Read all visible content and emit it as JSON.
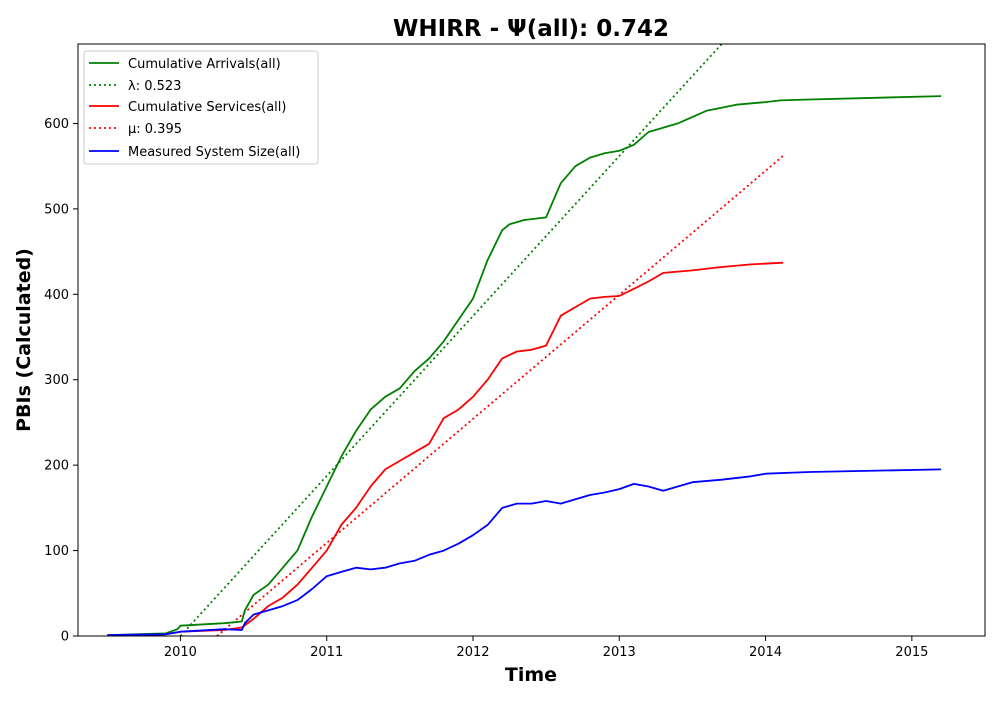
{
  "chart_data": {
    "type": "line",
    "title": "WHIRR -  Ψ(all): 0.742",
    "xlabel": "Time",
    "ylabel": "PBIs (Calculated)",
    "xlim": [
      2009.3,
      2015.5
    ],
    "ylim": [
      0,
      693
    ],
    "x_ticks": [
      "2010",
      "2011",
      "2012",
      "2013",
      "2014",
      "2015"
    ],
    "y_ticks": [
      "0",
      "100",
      "200",
      "300",
      "400",
      "500",
      "600"
    ],
    "grid": false,
    "legend_position": "top-left",
    "series": [
      {
        "name": "Cumulative Arrivals(all)",
        "color": "#008000",
        "style": "solid",
        "x": [
          2009.5,
          2009.9,
          2009.98,
          2010.0,
          2010.3,
          2010.42,
          2010.44,
          2010.5,
          2010.6,
          2010.7,
          2010.8,
          2010.9,
          2011.0,
          2011.1,
          2011.2,
          2011.3,
          2011.4,
          2011.5,
          2011.6,
          2011.7,
          2011.8,
          2011.9,
          2012.0,
          2012.1,
          2012.2,
          2012.25,
          2012.35,
          2012.5,
          2012.55,
          2012.6,
          2012.7,
          2012.8,
          2012.9,
          2013.0,
          2013.1,
          2013.2,
          2013.4,
          2013.6,
          2013.8,
          2014.0,
          2014.1,
          2014.3,
          2015.2
        ],
        "y": [
          1,
          3,
          8,
          12,
          15,
          17,
          30,
          48,
          60,
          80,
          100,
          140,
          175,
          210,
          240,
          265,
          280,
          290,
          310,
          325,
          345,
          370,
          395,
          440,
          475,
          482,
          487,
          490,
          510,
          530,
          550,
          560,
          565,
          568,
          575,
          590,
          600,
          615,
          622,
          625,
          627,
          628,
          632
        ]
      },
      {
        "name": "λ: 0.523",
        "color": "#008000",
        "style": "dotted",
        "x": [
          2010.0,
          2013.7
        ],
        "y": [
          0,
          693
        ]
      },
      {
        "name": "Cumulative Services(all)",
        "color": "#ff0000",
        "style": "solid",
        "x": [
          2009.5,
          2009.9,
          2010.0,
          2010.3,
          2010.42,
          2010.5,
          2010.6,
          2010.7,
          2010.8,
          2010.9,
          2011.0,
          2011.1,
          2011.2,
          2011.3,
          2011.4,
          2011.5,
          2011.6,
          2011.7,
          2011.8,
          2011.9,
          2012.0,
          2012.1,
          2012.2,
          2012.3,
          2012.4,
          2012.5,
          2012.6,
          2012.7,
          2012.8,
          2012.9,
          2013.0,
          2013.2,
          2013.3,
          2013.5,
          2013.7,
          2013.9,
          2014.12
        ],
        "y": [
          0,
          2,
          5,
          7,
          10,
          20,
          35,
          45,
          60,
          80,
          100,
          130,
          150,
          175,
          195,
          205,
          215,
          225,
          255,
          265,
          280,
          300,
          325,
          333,
          335,
          340,
          375,
          385,
          395,
          397,
          398,
          415,
          425,
          428,
          432,
          435,
          437
        ]
      },
      {
        "name": "μ: 0.395",
        "color": "#ff0000",
        "style": "dotted",
        "x": [
          2010.25,
          2014.12
        ],
        "y": [
          0,
          562
        ]
      },
      {
        "name": "Measured System Size(all)",
        "color": "#0000ff",
        "style": "solid",
        "x": [
          2009.5,
          2009.9,
          2010.0,
          2010.3,
          2010.42,
          2010.44,
          2010.5,
          2010.6,
          2010.7,
          2010.8,
          2010.9,
          2011.0,
          2011.1,
          2011.2,
          2011.3,
          2011.4,
          2011.5,
          2011.6,
          2011.7,
          2011.8,
          2011.9,
          2012.0,
          2012.1,
          2012.2,
          2012.3,
          2012.4,
          2012.5,
          2012.6,
          2012.7,
          2012.8,
          2012.9,
          2013.0,
          2013.1,
          2013.2,
          2013.3,
          2013.5,
          2013.7,
          2013.9,
          2014.0,
          2014.3,
          2015.2
        ],
        "y": [
          1,
          2,
          5,
          8,
          7,
          15,
          25,
          30,
          35,
          42,
          55,
          70,
          75,
          80,
          78,
          80,
          85,
          88,
          95,
          100,
          108,
          118,
          130,
          150,
          155,
          155,
          158,
          155,
          160,
          165,
          168,
          172,
          178,
          175,
          170,
          180,
          183,
          187,
          190,
          192,
          195
        ]
      }
    ]
  }
}
